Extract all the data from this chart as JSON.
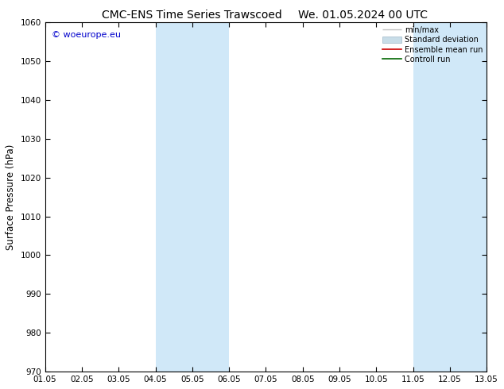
{
  "title": "CMC-ENS Time Series Trawscoed",
  "title2": "We. 01.05.2024 00 UTC",
  "ylabel": "Surface Pressure (hPa)",
  "ylim": [
    970,
    1060
  ],
  "yticks": [
    970,
    980,
    990,
    1000,
    1010,
    1020,
    1030,
    1040,
    1050,
    1060
  ],
  "xlim": [
    0,
    12
  ],
  "xtick_positions": [
    0,
    1,
    2,
    3,
    4,
    5,
    6,
    7,
    8,
    9,
    10,
    11,
    12
  ],
  "xtick_labels": [
    "01.05",
    "02.05",
    "03.05",
    "04.05",
    "05.05",
    "06.05",
    "07.05",
    "08.05",
    "09.05",
    "10.05",
    "11.05",
    "12.05",
    "13.05"
  ],
  "shaded_bands": [
    {
      "xmin": 3,
      "xmax": 5,
      "color": "#d0e8f8"
    },
    {
      "xmin": 10,
      "xmax": 12,
      "color": "#d0e8f8"
    }
  ],
  "watermark": "© woeurope.eu",
  "legend_entries": [
    {
      "label": "min/max",
      "color": "#c0c0c0",
      "lw": 1.0,
      "type": "line"
    },
    {
      "label": "Standard deviation",
      "color": "#c8dde8",
      "lw": 6.0,
      "type": "patch"
    },
    {
      "label": "Ensemble mean run",
      "color": "#cc0000",
      "lw": 1.2,
      "type": "line"
    },
    {
      "label": "Controll run",
      "color": "#006600",
      "lw": 1.2,
      "type": "line"
    }
  ],
  "bg_color": "#ffffff",
  "plot_bg_color": "#ffffff",
  "title_fontsize": 10,
  "tick_fontsize": 7.5,
  "label_fontsize": 8.5
}
